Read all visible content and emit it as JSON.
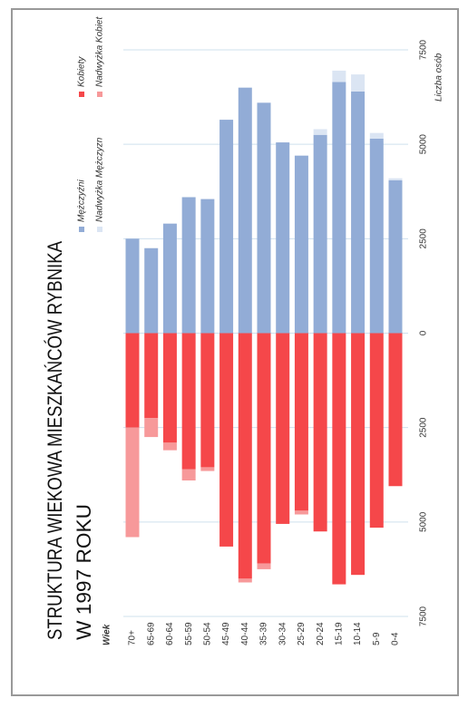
{
  "chart_data": {
    "type": "bar",
    "title": [
      "STRUKTURA WIEKOWA MIESZKAŃCÓW RYBNIKA",
      "W 1997 ROKU"
    ],
    "xlabel": "Wiek",
    "ylabel": "Liczba osób",
    "categories": [
      "70+",
      "65-69",
      "60-64",
      "55-59",
      "50-54",
      "45-49",
      "40-44",
      "35-39",
      "30-34",
      "25-29",
      "20-24",
      "15-19",
      "10-14",
      "5-9",
      "0-4"
    ],
    "series": [
      {
        "name": "Mężczyźni",
        "color": "#92acd6",
        "direction": "up",
        "values": [
          2500,
          2250,
          2900,
          3600,
          3550,
          5650,
          6500,
          6100,
          5050,
          4700,
          5250,
          6650,
          6400,
          5150,
          4050
        ]
      },
      {
        "name": "Nadwyżka Mężczyzn",
        "color": "#dbe5f3",
        "direction": "up",
        "values": [
          0,
          0,
          0,
          0,
          0,
          0,
          0,
          0,
          0,
          0,
          150,
          300,
          450,
          150,
          50
        ]
      },
      {
        "name": "Kobiety",
        "color": "#f5474a",
        "direction": "down",
        "values": [
          2500,
          2250,
          2900,
          3600,
          3550,
          5650,
          6500,
          6100,
          5050,
          4700,
          5250,
          6650,
          6400,
          5150,
          4050
        ]
      },
      {
        "name": "Nadwyżka Kobiet",
        "color": "#f7999a",
        "direction": "down",
        "values": [
          2900,
          500,
          200,
          300,
          100,
          0,
          100,
          150,
          0,
          100,
          0,
          0,
          0,
          0,
          0
        ]
      }
    ],
    "ylim": [
      -7500,
      7500
    ],
    "yticks": [
      {
        "value": -7500,
        "label": "7500"
      },
      {
        "value": -5000,
        "label": "5000"
      },
      {
        "value": -2500,
        "label": "2500"
      },
      0,
      2500,
      5000,
      7500
    ],
    "grid": true
  }
}
